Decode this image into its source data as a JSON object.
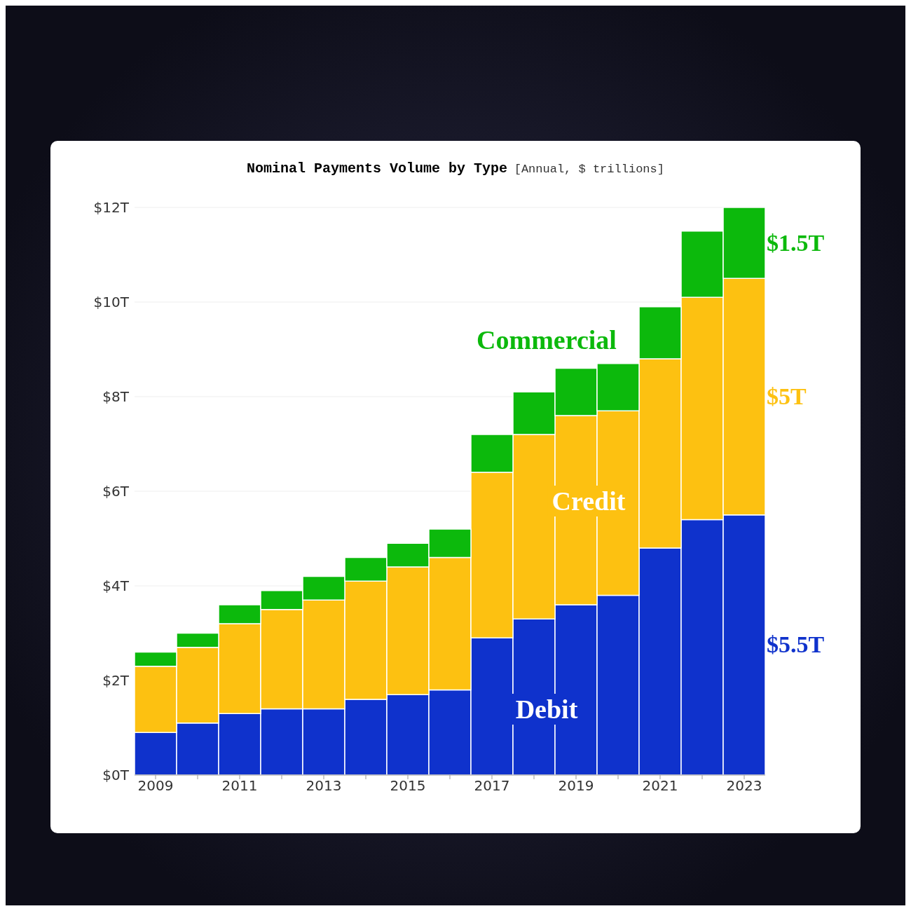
{
  "chart_data": {
    "type": "bar",
    "title": "Nominal Payments Volume by Type",
    "subtitle": "[Annual, $ trillions]",
    "stacked": true,
    "categories": [
      "2009",
      null,
      "2011",
      null,
      "2013",
      null,
      "2015",
      null,
      "2017",
      null,
      "2019",
      null,
      "2021",
      null,
      "2023"
    ],
    "series": [
      {
        "name": "Debit",
        "color": "#0f32cc",
        "values": [
          0.9,
          1.1,
          1.3,
          1.4,
          1.4,
          1.6,
          1.7,
          1.8,
          2.9,
          3.3,
          3.6,
          3.8,
          4.8,
          5.4,
          5.5
        ]
      },
      {
        "name": "Credit",
        "color": "#fdc111",
        "values": [
          1.4,
          1.6,
          1.9,
          2.1,
          2.3,
          2.5,
          2.7,
          2.8,
          3.5,
          3.9,
          4.0,
          3.9,
          4.0,
          4.7,
          5.0
        ]
      },
      {
        "name": "Commercial",
        "color": "#0cb90c",
        "values": [
          0.3,
          0.3,
          0.4,
          0.4,
          0.5,
          0.5,
          0.5,
          0.6,
          0.8,
          0.9,
          1.0,
          1.0,
          1.1,
          1.4,
          1.5
        ]
      }
    ],
    "ylim": [
      0,
      12
    ],
    "yticks": [
      {
        "value": 0,
        "label": "$0T"
      },
      {
        "value": 2,
        "label": "$2T"
      },
      {
        "value": 4,
        "label": "$4T"
      },
      {
        "value": 6,
        "label": "$6T"
      },
      {
        "value": 8,
        "label": "$8T"
      },
      {
        "value": 10,
        "label": "$10T"
      },
      {
        "value": 12,
        "label": "$12T"
      }
    ],
    "grid": "y",
    "legend": false,
    "annotations": [
      "$5.5T",
      "$5T",
      "$1.5T"
    ]
  }
}
